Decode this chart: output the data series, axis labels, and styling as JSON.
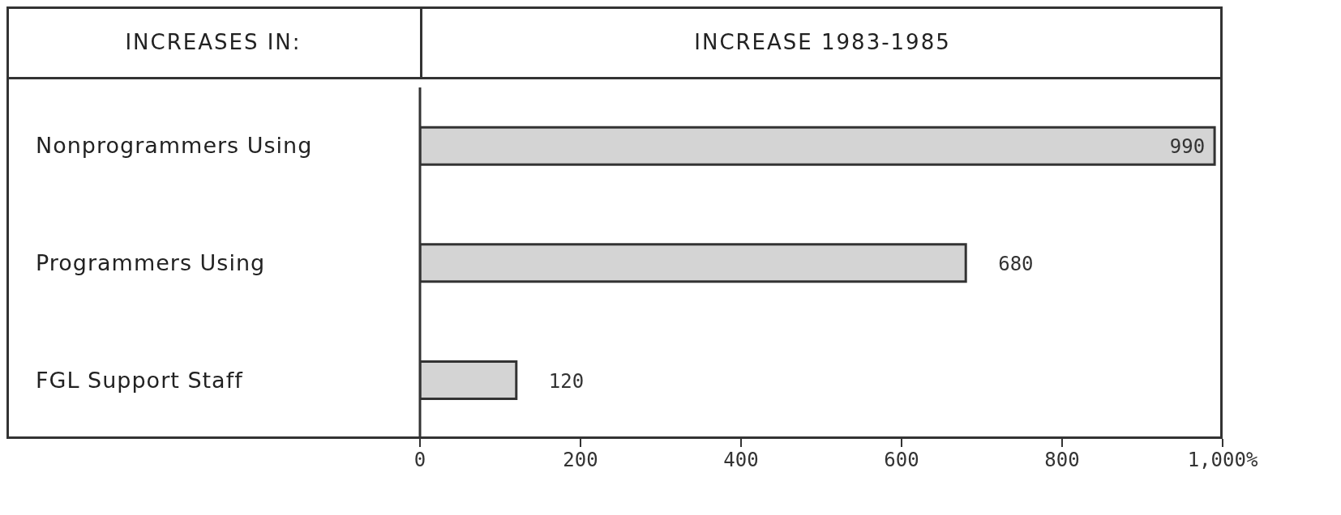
{
  "chart_data": {
    "type": "bar",
    "orientation": "horizontal",
    "title": "INCREASE 1983-1985",
    "ylabel": "INCREASES IN:",
    "categories": [
      "Nonprogrammers Using",
      "Programmers Using",
      "FGL Support Staff"
    ],
    "values": [
      990,
      680,
      120
    ],
    "color": "#d4d4d4",
    "data_labels": true,
    "grid": false,
    "legend": false,
    "xlim": [
      0,
      1000
    ],
    "xticks": [
      0,
      200,
      400,
      600,
      800,
      {
        "value": 1000,
        "label": "1,000%"
      }
    ]
  }
}
